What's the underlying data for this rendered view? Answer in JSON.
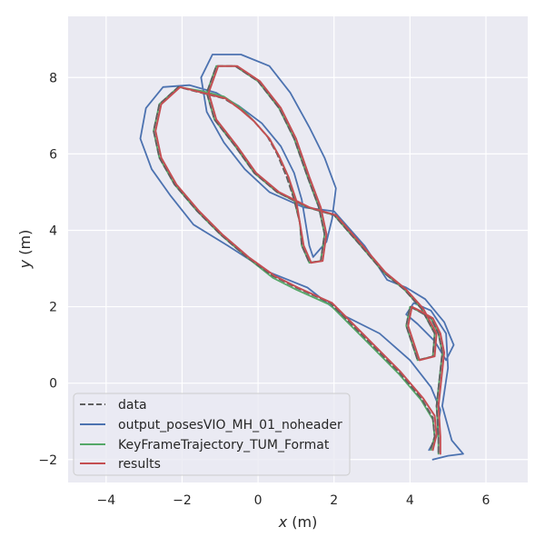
{
  "chart_data": {
    "type": "line",
    "xlabel_var": "x",
    "xlabel_unit": " (m)",
    "ylabel_var": "y",
    "ylabel_unit": " (m)",
    "xlim": [
      -5,
      7.1
    ],
    "ylim": [
      -2.6,
      9.6
    ],
    "xticks": [
      -4,
      -2,
      0,
      2,
      4,
      6
    ],
    "yticks": [
      -2,
      0,
      2,
      4,
      6,
      8
    ],
    "xtick_labels": [
      "−4",
      "−2",
      "0",
      "2",
      "4",
      "6"
    ],
    "ytick_labels": [
      "−2",
      "0",
      "2",
      "4",
      "6",
      "8"
    ],
    "grid": true,
    "legend_position": "lower-left",
    "colors": {
      "plot_background": "#eaeaf2",
      "grid": "#ffffff",
      "data": "#5f5f5f",
      "output_posesVIO_MH_01_noheader": "#4c72b0",
      "KeyFrameTrajectory_TUM_Format": "#55a868",
      "results": "#c44e52"
    },
    "series": [
      {
        "name": "data",
        "style": "dashed",
        "color": "#5f5f5f",
        "points": [
          [
            4.55,
            -1.7
          ],
          [
            4.65,
            -1.4
          ],
          [
            4.6,
            -0.9
          ],
          [
            4.3,
            -0.4
          ],
          [
            3.7,
            0.3
          ],
          [
            2.7,
            1.3
          ],
          [
            1.9,
            2.1
          ],
          [
            1.0,
            2.5
          ],
          [
            0.4,
            2.8
          ],
          [
            -0.3,
            3.3
          ],
          [
            -1.0,
            3.9
          ],
          [
            -1.6,
            4.5
          ],
          [
            -2.2,
            5.2
          ],
          [
            -2.6,
            5.9
          ],
          [
            -2.75,
            6.6
          ],
          [
            -2.6,
            7.3
          ],
          [
            -2.1,
            7.75
          ],
          [
            -1.5,
            7.6
          ],
          [
            -0.9,
            7.45
          ],
          [
            -0.5,
            7.2
          ],
          [
            -0.15,
            6.9
          ],
          [
            0.25,
            6.45
          ],
          [
            0.5,
            6.0
          ],
          [
            0.75,
            5.4
          ],
          [
            0.95,
            4.8
          ],
          [
            1.1,
            4.2
          ],
          [
            1.15,
            3.6
          ],
          [
            1.35,
            3.15
          ],
          [
            1.65,
            3.2
          ],
          [
            1.75,
            3.9
          ],
          [
            1.6,
            4.6
          ],
          [
            1.3,
            5.4
          ],
          [
            0.95,
            6.4
          ],
          [
            0.55,
            7.2
          ],
          [
            0.0,
            7.9
          ],
          [
            -0.6,
            8.3
          ],
          [
            -1.1,
            8.3
          ],
          [
            -1.35,
            7.6
          ],
          [
            -1.15,
            6.9
          ],
          [
            -0.6,
            6.2
          ],
          [
            -0.1,
            5.5
          ],
          [
            0.5,
            5.0
          ],
          [
            1.3,
            4.6
          ],
          [
            2.0,
            4.4
          ],
          [
            2.7,
            3.6
          ],
          [
            3.3,
            2.9
          ],
          [
            3.85,
            2.45
          ],
          [
            4.3,
            1.95
          ],
          [
            4.65,
            1.3
          ],
          [
            4.6,
            0.7
          ],
          [
            4.2,
            0.6
          ],
          [
            3.9,
            1.5
          ],
          [
            4.0,
            2.0
          ],
          [
            4.2,
            1.9
          ],
          [
            4.55,
            1.7
          ],
          [
            4.75,
            1.3
          ],
          [
            4.85,
            0.8
          ],
          [
            4.7,
            -0.6
          ],
          [
            4.75,
            -1.4
          ],
          [
            4.75,
            -1.85
          ]
        ]
      },
      {
        "name": "output_posesVIO_MH_01_noheader",
        "style": "solid",
        "color": "#4c72b0",
        "points": [
          [
            4.5,
            -1.75
          ],
          [
            4.7,
            -1.4
          ],
          [
            4.8,
            -0.7
          ],
          [
            4.55,
            -0.1
          ],
          [
            4.0,
            0.6
          ],
          [
            3.2,
            1.3
          ],
          [
            2.2,
            1.8
          ],
          [
            1.3,
            2.5
          ],
          [
            0.3,
            2.9
          ],
          [
            -0.8,
            3.6
          ],
          [
            -1.7,
            4.15
          ],
          [
            -2.3,
            4.9
          ],
          [
            -2.8,
            5.6
          ],
          [
            -3.1,
            6.4
          ],
          [
            -2.95,
            7.2
          ],
          [
            -2.5,
            7.75
          ],
          [
            -1.8,
            7.8
          ],
          [
            -1.1,
            7.6
          ],
          [
            -0.5,
            7.25
          ],
          [
            0.1,
            6.8
          ],
          [
            0.6,
            6.2
          ],
          [
            0.95,
            5.5
          ],
          [
            1.15,
            4.8
          ],
          [
            1.25,
            4.2
          ],
          [
            1.35,
            3.6
          ],
          [
            1.45,
            3.3
          ],
          [
            1.8,
            3.7
          ],
          [
            1.95,
            4.3
          ],
          [
            2.05,
            5.1
          ],
          [
            1.75,
            5.9
          ],
          [
            1.35,
            6.7
          ],
          [
            0.85,
            7.6
          ],
          [
            0.3,
            8.3
          ],
          [
            -0.45,
            8.6
          ],
          [
            -1.2,
            8.6
          ],
          [
            -1.5,
            8.0
          ],
          [
            -1.35,
            7.1
          ],
          [
            -0.9,
            6.3
          ],
          [
            -0.35,
            5.6
          ],
          [
            0.3,
            5.0
          ],
          [
            1.2,
            4.6
          ],
          [
            2.0,
            4.5
          ],
          [
            2.8,
            3.6
          ],
          [
            3.4,
            2.7
          ],
          [
            3.9,
            2.5
          ],
          [
            4.4,
            2.2
          ],
          [
            4.9,
            1.6
          ],
          [
            5.15,
            1.0
          ],
          [
            4.95,
            0.6
          ],
          [
            4.65,
            1.1
          ],
          [
            4.2,
            1.55
          ],
          [
            3.9,
            1.8
          ],
          [
            4.1,
            2.1
          ],
          [
            4.55,
            1.9
          ],
          [
            4.95,
            1.3
          ],
          [
            5.0,
            0.4
          ],
          [
            4.85,
            -0.6
          ],
          [
            5.1,
            -1.5
          ],
          [
            5.4,
            -1.85
          ],
          [
            5.0,
            -1.9
          ],
          [
            4.6,
            -2.0
          ]
        ]
      },
      {
        "name": "KeyFrameTrajectory_TUM_Format",
        "style": "solid",
        "color": "#55a868",
        "points": [
          [
            4.55,
            -1.75
          ],
          [
            4.65,
            -1.4
          ],
          [
            4.6,
            -0.95
          ],
          [
            4.3,
            -0.45
          ],
          [
            3.7,
            0.25
          ],
          [
            2.7,
            1.25
          ],
          [
            1.9,
            2.05
          ],
          [
            1.0,
            2.45
          ],
          [
            0.4,
            2.75
          ],
          [
            -0.3,
            3.3
          ],
          [
            -1.0,
            3.9
          ],
          [
            -1.6,
            4.5
          ],
          [
            -2.2,
            5.2
          ],
          [
            -2.6,
            5.9
          ],
          [
            -2.75,
            6.6
          ],
          [
            -2.6,
            7.3
          ],
          [
            -2.1,
            7.75
          ],
          [
            -1.5,
            7.65
          ],
          [
            -0.9,
            7.5
          ],
          [
            -0.45,
            7.2
          ],
          [
            -0.1,
            6.85
          ],
          [
            0.3,
            6.4
          ],
          [
            0.55,
            5.95
          ],
          [
            0.8,
            5.4
          ],
          [
            0.95,
            4.8
          ],
          [
            1.1,
            4.2
          ],
          [
            1.15,
            3.6
          ],
          [
            1.35,
            3.15
          ],
          [
            1.65,
            3.2
          ],
          [
            1.75,
            3.9
          ],
          [
            1.6,
            4.6
          ],
          [
            1.3,
            5.4
          ],
          [
            0.95,
            6.4
          ],
          [
            0.55,
            7.2
          ],
          [
            0.0,
            7.9
          ],
          [
            -0.6,
            8.3
          ],
          [
            -1.1,
            8.3
          ],
          [
            -1.35,
            7.6
          ],
          [
            -1.15,
            6.9
          ],
          [
            -0.6,
            6.2
          ],
          [
            -0.1,
            5.5
          ],
          [
            0.5,
            5.0
          ],
          [
            1.3,
            4.6
          ],
          [
            2.0,
            4.4
          ],
          [
            2.7,
            3.6
          ],
          [
            3.3,
            2.9
          ],
          [
            3.85,
            2.45
          ],
          [
            4.3,
            1.95
          ],
          [
            4.65,
            1.3
          ],
          [
            4.6,
            0.7
          ],
          [
            4.2,
            0.6
          ],
          [
            3.9,
            1.5
          ],
          [
            4.0,
            2.0
          ],
          [
            4.2,
            1.9
          ],
          [
            4.55,
            1.7
          ],
          [
            4.75,
            1.3
          ],
          [
            4.85,
            0.8
          ],
          [
            4.7,
            -0.6
          ],
          [
            4.75,
            -1.4
          ],
          [
            4.75,
            -1.85
          ]
        ]
      },
      {
        "name": "results",
        "style": "solid",
        "color": "#c44e52",
        "points": [
          [
            4.6,
            -1.75
          ],
          [
            4.7,
            -1.35
          ],
          [
            4.65,
            -0.85
          ],
          [
            4.35,
            -0.4
          ],
          [
            3.75,
            0.3
          ],
          [
            2.75,
            1.3
          ],
          [
            1.95,
            2.1
          ],
          [
            1.05,
            2.5
          ],
          [
            0.45,
            2.8
          ],
          [
            -0.25,
            3.3
          ],
          [
            -0.95,
            3.9
          ],
          [
            -1.55,
            4.5
          ],
          [
            -2.15,
            5.2
          ],
          [
            -2.55,
            5.9
          ],
          [
            -2.7,
            6.6
          ],
          [
            -2.55,
            7.3
          ],
          [
            -2.05,
            7.75
          ],
          [
            -1.45,
            7.6
          ],
          [
            -0.85,
            7.45
          ],
          [
            -0.45,
            7.15
          ],
          [
            -0.1,
            6.85
          ],
          [
            0.3,
            6.4
          ],
          [
            0.55,
            5.95
          ],
          [
            0.8,
            5.4
          ],
          [
            1.0,
            4.8
          ],
          [
            1.1,
            4.2
          ],
          [
            1.2,
            3.6
          ],
          [
            1.4,
            3.15
          ],
          [
            1.7,
            3.2
          ],
          [
            1.8,
            3.9
          ],
          [
            1.65,
            4.6
          ],
          [
            1.35,
            5.4
          ],
          [
            1.0,
            6.4
          ],
          [
            0.6,
            7.2
          ],
          [
            0.05,
            7.9
          ],
          [
            -0.55,
            8.3
          ],
          [
            -1.05,
            8.3
          ],
          [
            -1.3,
            7.6
          ],
          [
            -1.1,
            6.9
          ],
          [
            -0.55,
            6.2
          ],
          [
            -0.05,
            5.5
          ],
          [
            0.55,
            5.0
          ],
          [
            1.35,
            4.6
          ],
          [
            2.05,
            4.4
          ],
          [
            2.75,
            3.6
          ],
          [
            3.35,
            2.9
          ],
          [
            3.9,
            2.45
          ],
          [
            4.35,
            1.95
          ],
          [
            4.7,
            1.3
          ],
          [
            4.65,
            0.7
          ],
          [
            4.25,
            0.6
          ],
          [
            3.95,
            1.5
          ],
          [
            4.05,
            2.0
          ],
          [
            4.25,
            1.9
          ],
          [
            4.6,
            1.7
          ],
          [
            4.8,
            1.3
          ],
          [
            4.9,
            0.8
          ],
          [
            4.75,
            -0.6
          ],
          [
            4.8,
            -1.4
          ],
          [
            4.8,
            -1.85
          ]
        ]
      }
    ]
  }
}
